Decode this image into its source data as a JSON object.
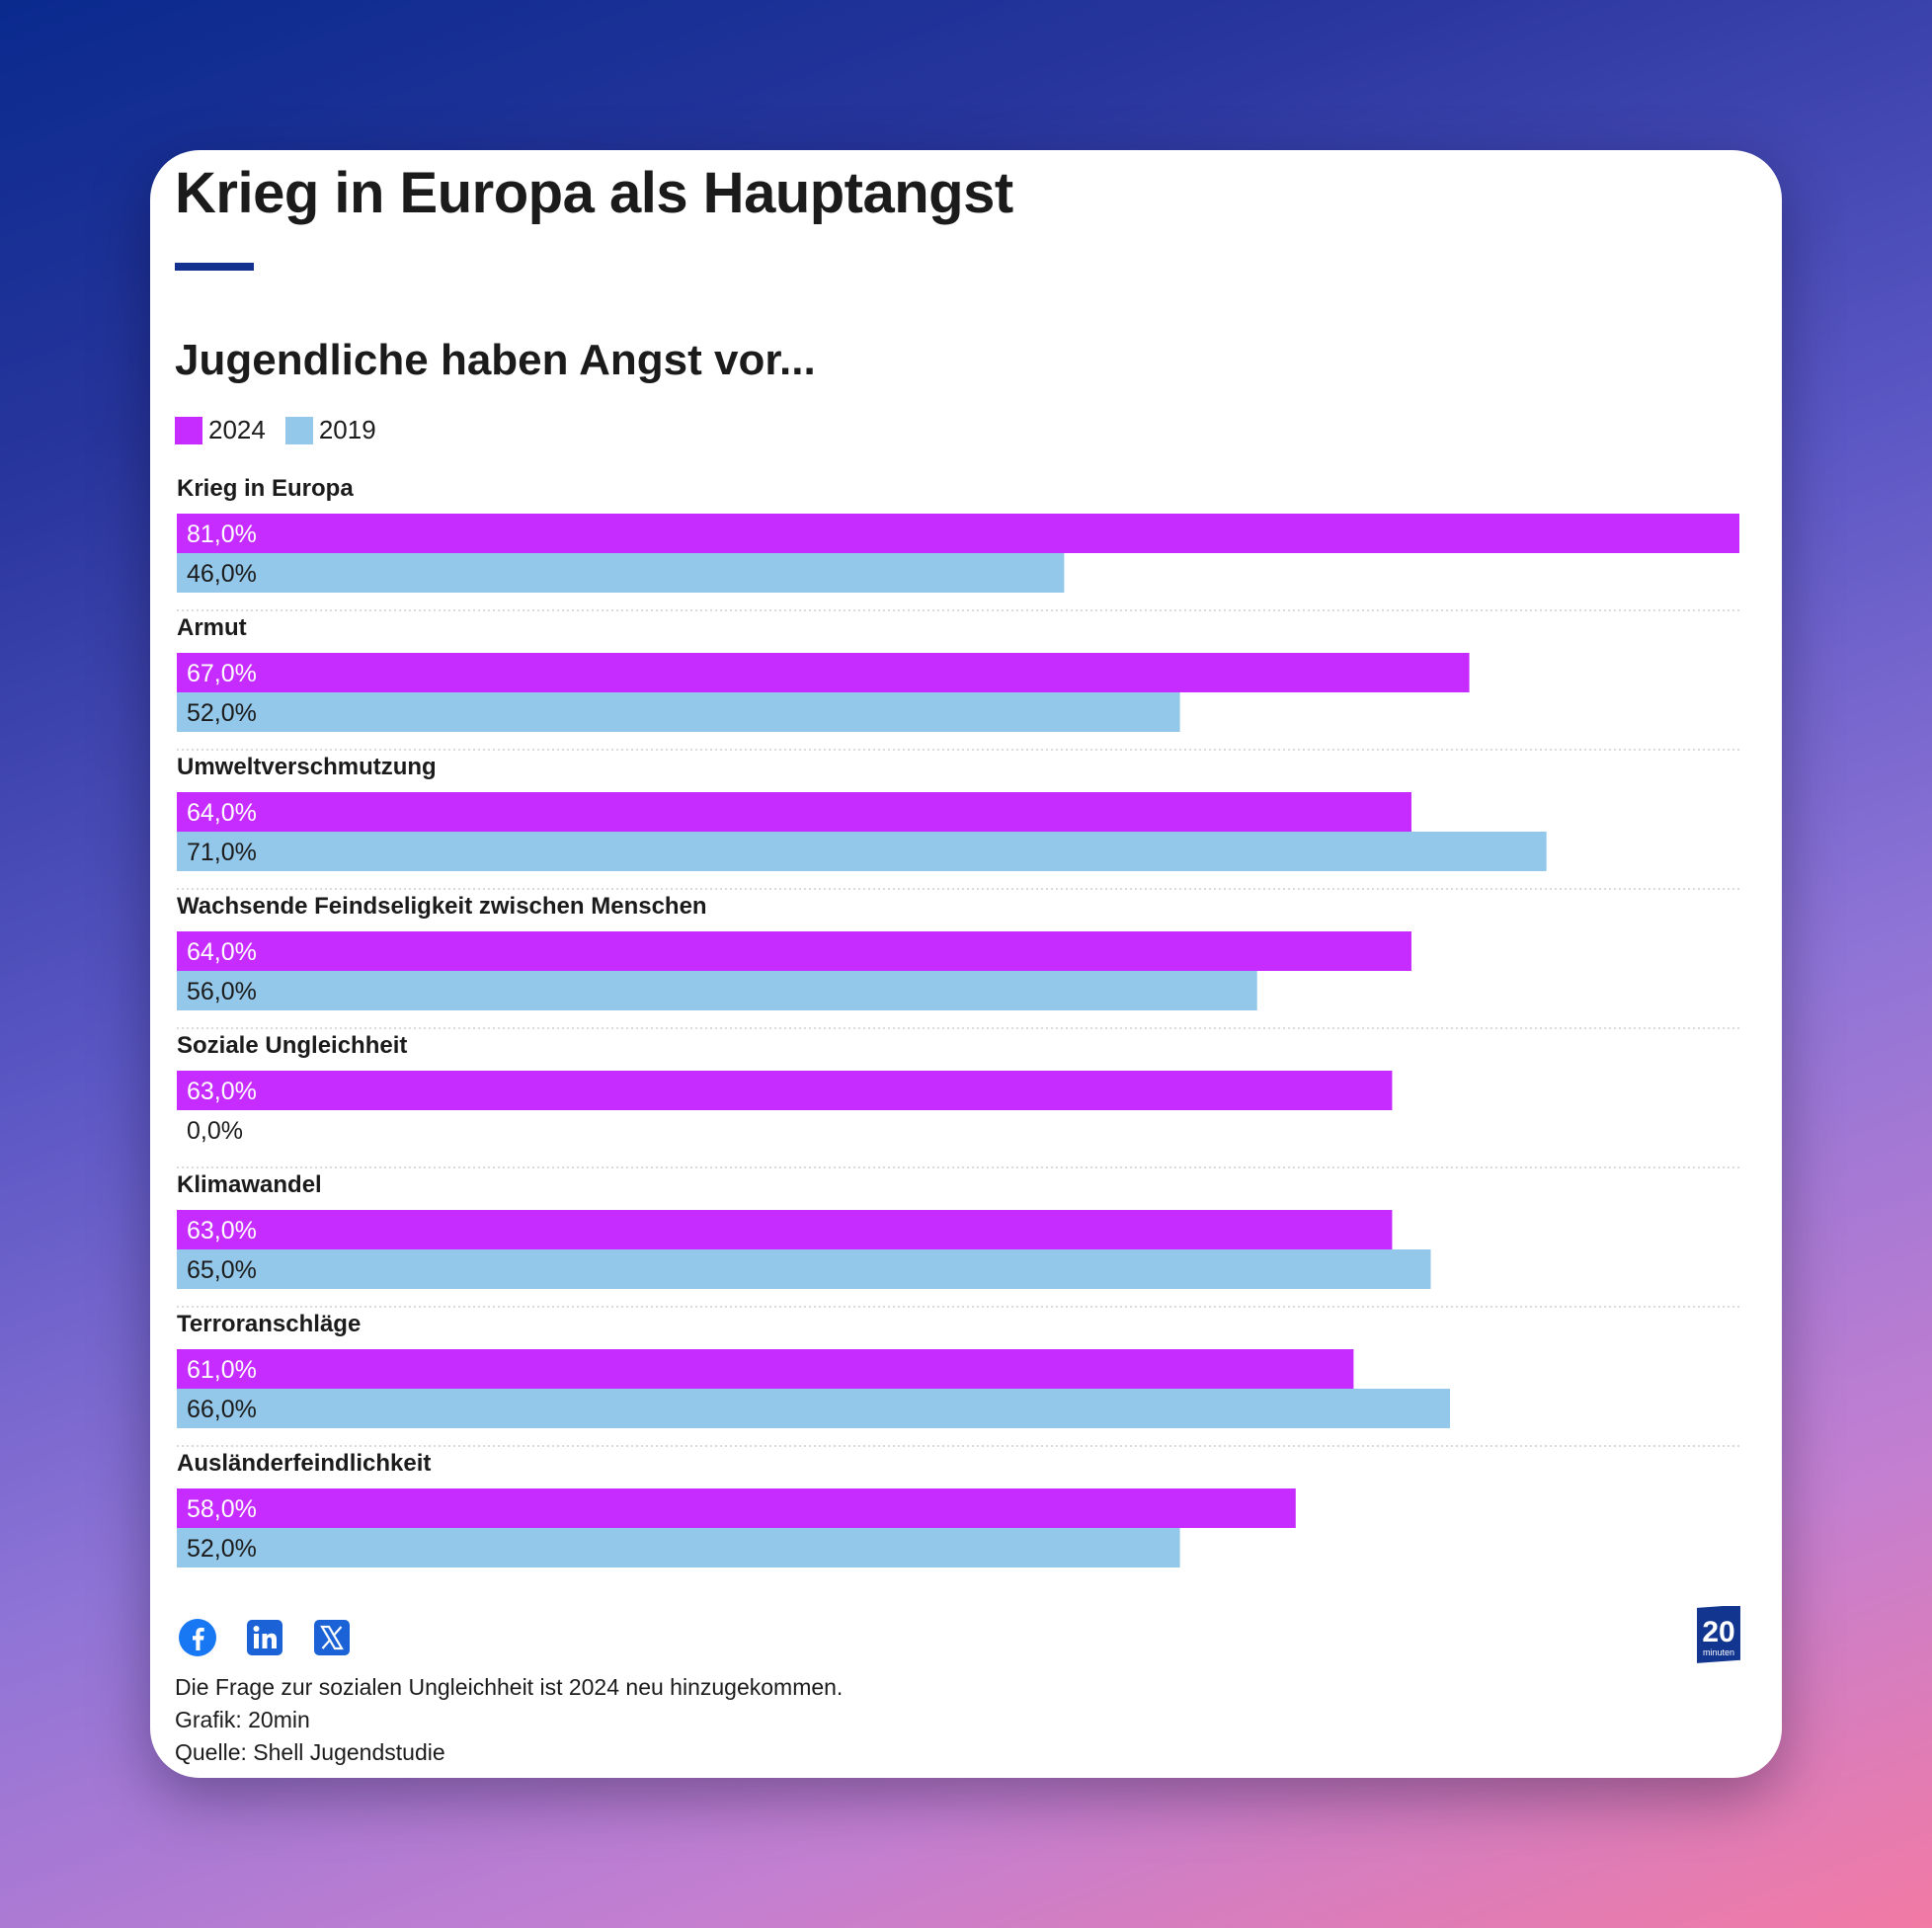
{
  "colors": {
    "series_2024": "#c62bff",
    "series_2019": "#93c8ea",
    "accent_rule": "#13318f",
    "icon_blue": "#1877f2",
    "logo_blue": "#12358f"
  },
  "header": {
    "title": "Krieg in Europa als Hauptangst",
    "subtitle": "Jugendliche haben Angst vor..."
  },
  "chart_data": {
    "type": "bar",
    "orientation": "horizontal",
    "title": "Jugendliche haben Angst vor...",
    "categories": [
      "Krieg in Europa",
      "Armut",
      "Umweltverschmutzung",
      "Wachsende Feindseligkeit zwischen Menschen",
      "Soziale Ungleichheit",
      "Klimawandel",
      "Terroranschläge",
      "Ausländerfeindlichkeit"
    ],
    "series": [
      {
        "name": "2024",
        "values": [
          81,
          67,
          64,
          64,
          63,
          63,
          61,
          58
        ],
        "labels": [
          "81,0%",
          "67,0%",
          "64,0%",
          "64,0%",
          "63,0%",
          "63,0%",
          "61,0%",
          "58,0%"
        ]
      },
      {
        "name": "2019",
        "values": [
          46,
          52,
          71,
          56,
          0,
          65,
          66,
          52
        ],
        "labels": [
          "46,0%",
          "52,0%",
          "71,0%",
          "56,0%",
          "0,0%",
          "65,0%",
          "66,0%",
          "52,0%"
        ]
      }
    ],
    "xlim": [
      0,
      81
    ],
    "legend": "top-left",
    "grid": false
  },
  "social": {
    "icons": [
      "facebook-icon",
      "linkedin-icon",
      "x-icon"
    ]
  },
  "logo": {
    "line1": "20",
    "line2": "minuten"
  },
  "footer": {
    "note": "Die Frage zur sozialen Ungleichheit ist 2024 neu hinzugekommen.",
    "credit": "Grafik: 20min",
    "source": "Quelle: Shell Jugendstudie"
  }
}
